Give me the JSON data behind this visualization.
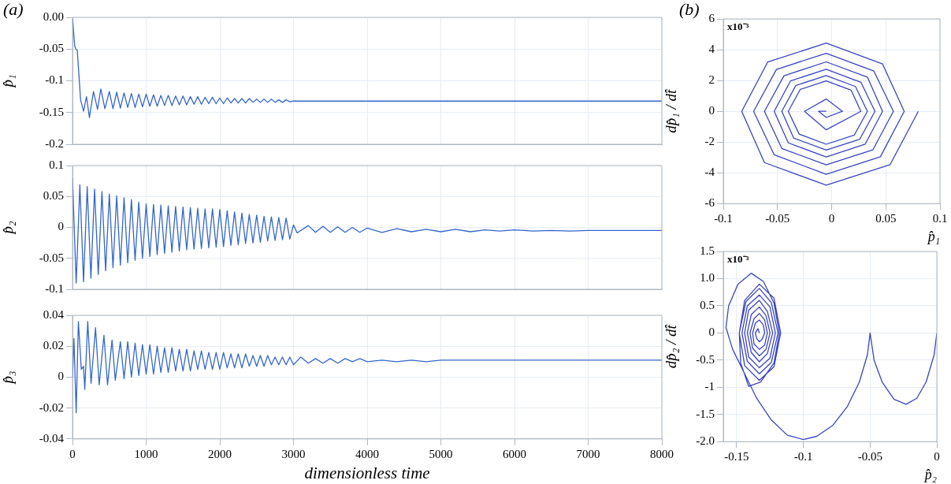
{
  "chart_data": [
    {
      "type": "line",
      "title": "(a)",
      "ylabel": "p̂₁",
      "color": "#3566c9",
      "grid": true,
      "tick_labels": "y",
      "xlim": [
        0,
        8000
      ],
      "xticks": [
        0,
        1000,
        2000,
        3000,
        4000,
        5000,
        6000,
        7000,
        8000
      ],
      "ylim": [
        -0.2,
        0
      ],
      "yticks": [
        {
          "value": 0,
          "label": "0.00"
        },
        -0.05,
        -0.1,
        -0.15,
        -0.2
      ],
      "x": [
        0,
        30,
        45,
        65,
        110,
        150,
        190,
        230,
        285,
        340,
        385,
        440,
        500,
        550,
        600,
        650,
        700,
        750,
        800,
        850,
        900,
        950,
        1000,
        1050,
        1100,
        1150,
        1200,
        1250,
        1300,
        1350,
        1400,
        1450,
        1500,
        1550,
        1600,
        1650,
        1700,
        1750,
        1800,
        1850,
        1900,
        1950,
        2000,
        2050,
        2100,
        2150,
        2200,
        2250,
        2300,
        2350,
        2400,
        2450,
        2500,
        2550,
        2600,
        2650,
        2700,
        2750,
        2800,
        2850,
        2900,
        2950,
        3000,
        8000
      ],
      "values": [
        0,
        -0.045,
        -0.05,
        -0.052,
        -0.13,
        -0.148,
        -0.125,
        -0.158,
        -0.117,
        -0.145,
        -0.113,
        -0.144,
        -0.117,
        -0.144,
        -0.118,
        -0.143,
        -0.119,
        -0.142,
        -0.12,
        -0.142,
        -0.121,
        -0.141,
        -0.121,
        -0.14,
        -0.122,
        -0.14,
        -0.123,
        -0.139,
        -0.123,
        -0.139,
        -0.124,
        -0.138,
        -0.124,
        -0.138,
        -0.125,
        -0.137,
        -0.125,
        -0.137,
        -0.126,
        -0.136,
        -0.126,
        -0.136,
        -0.127,
        -0.136,
        -0.127,
        -0.135,
        -0.128,
        -0.135,
        -0.128,
        -0.135,
        -0.128,
        -0.134,
        -0.129,
        -0.134,
        -0.129,
        -0.134,
        -0.129,
        -0.134,
        -0.13,
        -0.134,
        -0.13,
        -0.133,
        -0.132,
        -0.132
      ]
    },
    {
      "type": "line",
      "ylabel": "p̂₂",
      "color": "#3566c9",
      "grid": true,
      "tick_labels": "y",
      "xlim": [
        0,
        8000
      ],
      "xticks": [
        0,
        1000,
        2000,
        3000,
        4000,
        5000,
        6000,
        7000,
        8000
      ],
      "ylim": [
        -0.1,
        0.1
      ],
      "yticks": [
        0.1,
        0.05,
        0,
        -0.05,
        -0.1
      ],
      "x": [
        0,
        50,
        100,
        150,
        200,
        250,
        300,
        350,
        400,
        450,
        500,
        550,
        600,
        650,
        700,
        750,
        800,
        850,
        900,
        950,
        1000,
        1050,
        1100,
        1150,
        1200,
        1250,
        1300,
        1350,
        1400,
        1450,
        1500,
        1550,
        1600,
        1650,
        1700,
        1750,
        1800,
        1850,
        1900,
        1950,
        2000,
        2050,
        2100,
        2150,
        2200,
        2250,
        2300,
        2350,
        2400,
        2450,
        2500,
        2550,
        2600,
        2650,
        2700,
        2750,
        2800,
        2850,
        2900,
        2950,
        3000,
        3050,
        3200,
        3300,
        3400,
        3500,
        3600,
        3700,
        3800,
        3900,
        4000,
        4200,
        4400,
        4600,
        4800,
        5000,
        5200,
        5400,
        5600,
        5800,
        6000,
        6250,
        6500,
        6750,
        7000,
        7500,
        8000
      ],
      "values": [
        0.08,
        -0.09,
        0.069,
        -0.088,
        0.066,
        -0.082,
        0.062,
        -0.076,
        0.058,
        -0.07,
        0.054,
        -0.065,
        0.051,
        -0.061,
        0.048,
        -0.057,
        0.045,
        -0.053,
        0.041,
        -0.05,
        0.038,
        -0.047,
        0.037,
        -0.044,
        0.036,
        -0.042,
        0.035,
        -0.04,
        0.034,
        -0.038,
        0.033,
        -0.036,
        0.032,
        -0.035,
        0.031,
        -0.034,
        0.03,
        -0.033,
        0.03,
        -0.032,
        0.029,
        -0.031,
        0.027,
        -0.029,
        0.025,
        -0.028,
        0.023,
        -0.026,
        0.021,
        -0.025,
        0.02,
        -0.024,
        0.018,
        -0.022,
        0.017,
        -0.021,
        0.016,
        -0.02,
        0.015,
        -0.019,
        0.004,
        -0.009,
        0.003,
        -0.008,
        0.002,
        -0.008,
        0.001,
        -0.008,
        0,
        -0.008,
        -0.001,
        -0.008,
        -0.002,
        -0.007,
        -0.003,
        -0.007,
        -0.003,
        -0.007,
        -0.004,
        -0.006,
        -0.004,
        -0.006,
        -0.005,
        -0.006,
        -0.005,
        -0.005,
        -0.005
      ]
    },
    {
      "type": "line",
      "xlabel": "dimensionless time",
      "ylabel": "p̂₃",
      "color": "#3566c9",
      "grid": true,
      "xlim": [
        0,
        8000
      ],
      "xticks": [
        0,
        1000,
        2000,
        3000,
        4000,
        5000,
        6000,
        7000,
        8000
      ],
      "ylim": [
        -0.04,
        0.04
      ],
      "yticks": [
        0.04,
        0.02,
        0,
        -0.02,
        -0.04
      ],
      "x": [
        0,
        20,
        50,
        80,
        120,
        150,
        167,
        207,
        252,
        313,
        362,
        427,
        476,
        537,
        581,
        650,
        700,
        750,
        800,
        850,
        900,
        950,
        1000,
        1050,
        1100,
        1150,
        1200,
        1250,
        1300,
        1350,
        1400,
        1450,
        1500,
        1550,
        1600,
        1650,
        1700,
        1750,
        1800,
        1850,
        1900,
        1950,
        2000,
        2050,
        2100,
        2150,
        2200,
        2250,
        2300,
        2350,
        2400,
        2450,
        2500,
        2550,
        2600,
        2650,
        2700,
        2750,
        2800,
        2850,
        2900,
        2950,
        3000,
        3100,
        3200,
        3300,
        3400,
        3500,
        3600,
        3700,
        3800,
        3900,
        4000,
        4200,
        4400,
        4600,
        4800,
        5000,
        8000
      ],
      "values": [
        0,
        0.025,
        -0.023,
        0.036,
        0.005,
        0.007,
        -0.008,
        0.036,
        -0.004,
        0.032,
        -0.005,
        0.027,
        -0.005,
        0.024,
        -0.002,
        0.023,
        -0.001,
        0.023,
        0,
        0.022,
        0.001,
        0.021,
        0.002,
        0.021,
        0.002,
        0.02,
        0.003,
        0.019,
        0.003,
        0.019,
        0.004,
        0.018,
        0.004,
        0.018,
        0.004,
        0.017,
        0.005,
        0.017,
        0.005,
        0.016,
        0.005,
        0.016,
        0.005,
        0.016,
        0.006,
        0.015,
        0.006,
        0.015,
        0.006,
        0.015,
        0.007,
        0.014,
        0.007,
        0.014,
        0.007,
        0.014,
        0.008,
        0.013,
        0.008,
        0.013,
        0.008,
        0.013,
        0.008,
        0.013,
        0.009,
        0.012,
        0.009,
        0.012,
        0.009,
        0.012,
        0.01,
        0.012,
        0.01,
        0.011,
        0.01,
        0.011,
        0.01,
        0.011,
        0.011
      ]
    },
    {
      "type": "line",
      "title": "(b)",
      "xlabel": "p̂₁",
      "ylabel": "dp̂₁ / dt̂",
      "annotations": [
        "x10⁻³"
      ],
      "color": "#3a45c0",
      "grid": true,
      "xlim": [
        -0.1,
        0.1
      ],
      "xticks": [
        -0.1,
        -0.05,
        0,
        0.05,
        0.1
      ],
      "ylim": [
        -6,
        6
      ],
      "yticks": [
        6,
        4,
        2,
        0,
        -2,
        -4,
        -6
      ],
      "x": [
        0.08,
        0.054,
        -0.005,
        -0.062,
        -0.083,
        -0.059,
        -0.005,
        0.047,
        0.067,
        0.045,
        -0.005,
        -0.053,
        -0.072,
        -0.051,
        -0.005,
        0.039,
        0.057,
        0.038,
        -0.005,
        -0.046,
        -0.062,
        -0.044,
        -0.005,
        0.033,
        0.047,
        0.031,
        -0.005,
        -0.04,
        -0.053,
        -0.038,
        -0.005,
        0.027,
        0.04,
        0.026,
        -0.005,
        -0.035,
        -0.046,
        -0.033,
        -0.005,
        0.022,
        0.033,
        0.021,
        -0.005,
        -0.03,
        -0.04,
        -0.029,
        -0.005,
        0.018,
        0.027,
        -0.005,
        -0.025,
        -0.005,
        0.01,
        -0.005,
        -0.012,
        -0.005
      ],
      "values": [
        0,
        -3.46,
        -4.8,
        -3.33,
        0,
        3.2,
        4.43,
        3.07,
        0,
        -2.95,
        -4.09,
        -2.83,
        0,
        2.72,
        3.77,
        2.61,
        0,
        -2.51,
        -3.48,
        -2.41,
        0,
        2.31,
        3.21,
        2.22,
        0,
        -2.13,
        -2.96,
        -2.05,
        0,
        1.97,
        2.73,
        1.89,
        0,
        -1.81,
        -2.52,
        -1.74,
        0,
        1.68,
        2.32,
        1.61,
        0,
        -1.54,
        -2.14,
        -1.48,
        0,
        1.42,
        1.98,
        1.37,
        0,
        -1.2,
        0,
        0.8,
        0,
        -0.4,
        0,
        0
      ]
    },
    {
      "type": "line",
      "xlabel": "p̂₂",
      "ylabel": "dp̂₂ / dt̂",
      "annotations": [
        "x10⁻³"
      ],
      "color": "#3a45c0",
      "grid": true,
      "xlim": [
        -0.16,
        0
      ],
      "xticks": [
        -0.15,
        -0.1,
        -0.05,
        0
      ],
      "ylim": [
        -2,
        1.5
      ],
      "yticks": [
        1.5,
        {
          "value": 1,
          "label": "1.0"
        },
        0.5,
        0,
        -0.5,
        -1,
        -1.5,
        {
          "value": -2,
          "label": "-2.0"
        }
      ],
      "x": [
        0,
        -0.002,
        -0.008,
        -0.015,
        -0.023,
        -0.032,
        -0.041,
        -0.047,
        -0.05,
        -0.052,
        -0.058,
        -0.067,
        -0.078,
        -0.09,
        -0.1,
        -0.112,
        -0.124,
        -0.135,
        -0.145,
        -0.153,
        -0.158,
        -0.156,
        -0.149,
        -0.139,
        -0.13,
        -0.122,
        -0.118,
        -0.122,
        -0.132,
        -0.141,
        -0.147,
        -0.148,
        -0.144,
        -0.133,
        -0.122,
        -0.117,
        -0.122,
        -0.133,
        -0.144,
        -0.148,
        -0.143,
        -0.133,
        -0.124,
        -0.119,
        -0.124,
        -0.133,
        -0.142,
        -0.146,
        -0.142,
        -0.133,
        -0.125,
        -0.121,
        -0.125,
        -0.133,
        -0.141,
        -0.144,
        -0.141,
        -0.133,
        -0.127,
        -0.123,
        -0.127,
        -0.133,
        -0.139,
        -0.142,
        -0.139,
        -0.133,
        -0.128,
        -0.125,
        -0.128,
        -0.133,
        -0.138,
        -0.14,
        -0.137,
        -0.133,
        -0.129,
        -0.127,
        -0.129,
        -0.133,
        -0.137,
        -0.138,
        -0.136,
        -0.133,
        -0.13,
        -0.129,
        -0.131,
        -0.133,
        -0.135,
        -0.136,
        -0.134,
        -0.133
      ],
      "values": [
        0,
        -0.4,
        -0.9,
        -1.2,
        -1.31,
        -1.22,
        -0.9,
        -0.5,
        0,
        -0.4,
        -0.9,
        -1.35,
        -1.7,
        -1.9,
        -1.96,
        -1.88,
        -1.6,
        -1.2,
        -0.7,
        -0.3,
        0.1,
        0.5,
        0.9,
        1.1,
        0.95,
        0.55,
        0,
        -0.55,
        -0.9,
        -0.98,
        -0.55,
        0,
        0.6,
        0.9,
        0.64,
        0,
        -0.62,
        -0.87,
        -0.6,
        0,
        0.58,
        0.82,
        0.56,
        0,
        -0.54,
        -0.75,
        -0.52,
        0,
        0.5,
        0.7,
        0.48,
        0,
        -0.46,
        -0.64,
        -0.44,
        0,
        0.42,
        0.6,
        0.4,
        0,
        -0.38,
        -0.53,
        -0.36,
        0,
        0.34,
        0.48,
        0.32,
        0,
        -0.3,
        -0.42,
        -0.28,
        0,
        0.26,
        0.36,
        0.24,
        0,
        -0.22,
        -0.3,
        -0.2,
        0,
        0.18,
        0.24,
        0.15,
        0,
        -0.12,
        -0.16,
        -0.1,
        0,
        0.08,
        0
      ]
    }
  ]
}
